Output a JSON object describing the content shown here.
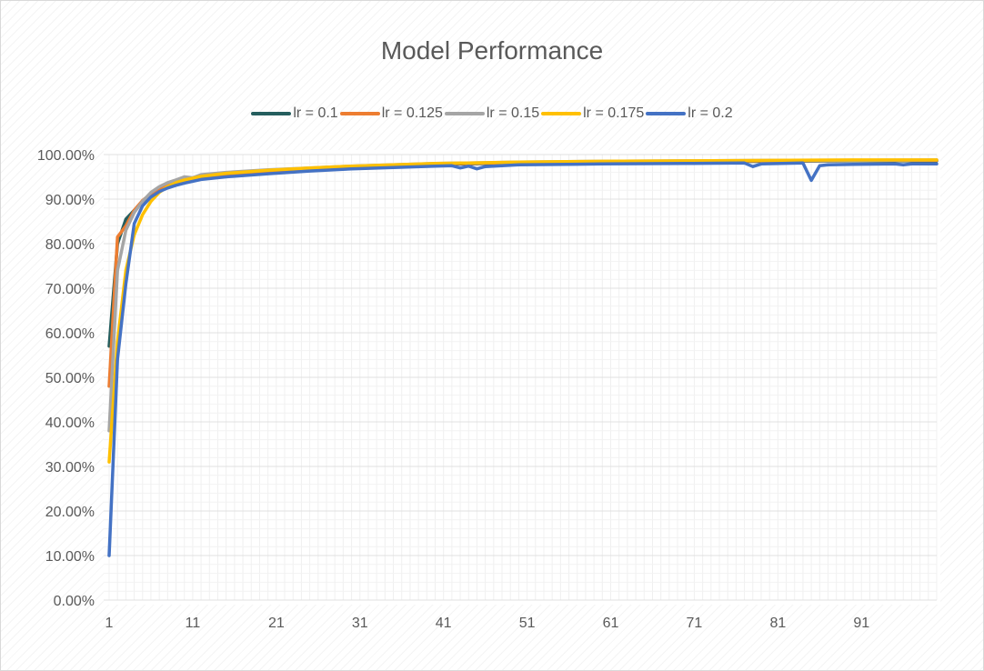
{
  "chart_data": {
    "type": "line",
    "title": "Model Performance",
    "xlabel": "",
    "ylabel": "",
    "ylim": [
      0,
      1
    ],
    "xlim": [
      1,
      100
    ],
    "x_tick_labels": [
      "1",
      "11",
      "21",
      "31",
      "41",
      "51",
      "61",
      "71",
      "81",
      "91"
    ],
    "x_tick_values": [
      1,
      11,
      21,
      31,
      41,
      51,
      61,
      71,
      81,
      91
    ],
    "y_tick_labels": [
      "0.00%",
      "10.00%",
      "20.00%",
      "30.00%",
      "40.00%",
      "50.00%",
      "60.00%",
      "70.00%",
      "80.00%",
      "90.00%",
      "100.00%"
    ],
    "y_tick_values": [
      0,
      0.1,
      0.2,
      0.3,
      0.4,
      0.5,
      0.6,
      0.7,
      0.8,
      0.9,
      1.0
    ],
    "grid": true,
    "legend_position": "top",
    "series": [
      {
        "name": "lr = 0.1",
        "color": "#255E5E",
        "points": [
          [
            1,
            0.57
          ],
          [
            2,
            0.8
          ],
          [
            3,
            0.855
          ],
          [
            4,
            0.875
          ],
          [
            5,
            0.895
          ],
          [
            6,
            0.91
          ],
          [
            7,
            0.92
          ],
          [
            8,
            0.93
          ],
          [
            9,
            0.935
          ],
          [
            10,
            0.94
          ],
          [
            12,
            0.946
          ],
          [
            15,
            0.953
          ],
          [
            20,
            0.96
          ],
          [
            25,
            0.966
          ],
          [
            30,
            0.971
          ],
          [
            35,
            0.975
          ],
          [
            40,
            0.978
          ],
          [
            50,
            0.981
          ],
          [
            60,
            0.983
          ],
          [
            70,
            0.984
          ],
          [
            80,
            0.985
          ],
          [
            90,
            0.986
          ],
          [
            100,
            0.986
          ]
        ]
      },
      {
        "name": "lr = 0.125",
        "color": "#ED7D31",
        "points": [
          [
            1,
            0.48
          ],
          [
            2,
            0.815
          ],
          [
            3,
            0.84
          ],
          [
            4,
            0.875
          ],
          [
            5,
            0.897
          ],
          [
            6,
            0.912
          ],
          [
            7,
            0.923
          ],
          [
            8,
            0.932
          ],
          [
            9,
            0.938
          ],
          [
            10,
            0.943
          ],
          [
            12,
            0.949
          ],
          [
            15,
            0.956
          ],
          [
            20,
            0.963
          ],
          [
            25,
            0.968
          ],
          [
            30,
            0.972
          ],
          [
            35,
            0.976
          ],
          [
            40,
            0.979
          ],
          [
            50,
            0.982
          ],
          [
            60,
            0.984
          ],
          [
            70,
            0.985
          ],
          [
            80,
            0.986
          ],
          [
            90,
            0.987
          ],
          [
            100,
            0.987
          ]
        ]
      },
      {
        "name": "lr = 0.15",
        "color": "#A5A5A5",
        "points": [
          [
            1,
            0.38
          ],
          [
            2,
            0.74
          ],
          [
            3,
            0.83
          ],
          [
            4,
            0.87
          ],
          [
            5,
            0.895
          ],
          [
            6,
            0.915
          ],
          [
            7,
            0.928
          ],
          [
            8,
            0.937
          ],
          [
            9,
            0.943
          ],
          [
            10,
            0.95
          ],
          [
            11,
            0.948
          ],
          [
            12,
            0.955
          ],
          [
            15,
            0.96
          ],
          [
            20,
            0.966
          ],
          [
            25,
            0.97
          ],
          [
            30,
            0.974
          ],
          [
            35,
            0.977
          ],
          [
            40,
            0.98
          ],
          [
            50,
            0.983
          ],
          [
            60,
            0.985
          ],
          [
            70,
            0.986
          ],
          [
            80,
            0.987
          ],
          [
            90,
            0.987
          ],
          [
            100,
            0.988
          ]
        ]
      },
      {
        "name": "lr = 0.175",
        "color": "#FFC000",
        "points": [
          [
            1,
            0.31
          ],
          [
            2,
            0.58
          ],
          [
            3,
            0.74
          ],
          [
            4,
            0.82
          ],
          [
            5,
            0.865
          ],
          [
            6,
            0.895
          ],
          [
            7,
            0.915
          ],
          [
            8,
            0.928
          ],
          [
            9,
            0.937
          ],
          [
            10,
            0.943
          ],
          [
            12,
            0.951
          ],
          [
            15,
            0.958
          ],
          [
            20,
            0.965
          ],
          [
            25,
            0.97
          ],
          [
            30,
            0.974
          ],
          [
            35,
            0.977
          ],
          [
            40,
            0.98
          ],
          [
            50,
            0.983
          ],
          [
            60,
            0.985
          ],
          [
            70,
            0.986
          ],
          [
            80,
            0.987
          ],
          [
            90,
            0.988
          ],
          [
            100,
            0.988
          ]
        ]
      },
      {
        "name": "lr = 0.2",
        "color": "#4472C4",
        "points": [
          [
            1,
            0.1
          ],
          [
            2,
            0.54
          ],
          [
            3,
            0.71
          ],
          [
            4,
            0.845
          ],
          [
            5,
            0.885
          ],
          [
            6,
            0.905
          ],
          [
            7,
            0.917
          ],
          [
            8,
            0.925
          ],
          [
            9,
            0.931
          ],
          [
            10,
            0.936
          ],
          [
            11,
            0.94
          ],
          [
            12,
            0.944
          ],
          [
            15,
            0.95
          ],
          [
            20,
            0.957
          ],
          [
            25,
            0.963
          ],
          [
            30,
            0.968
          ],
          [
            35,
            0.971
          ],
          [
            40,
            0.974
          ],
          [
            42,
            0.975
          ],
          [
            43,
            0.97
          ],
          [
            44,
            0.974
          ],
          [
            45,
            0.968
          ],
          [
            46,
            0.973
          ],
          [
            50,
            0.977
          ],
          [
            60,
            0.979
          ],
          [
            70,
            0.98
          ],
          [
            77,
            0.981
          ],
          [
            78,
            0.973
          ],
          [
            79,
            0.979
          ],
          [
            84,
            0.981
          ],
          [
            85,
            0.942
          ],
          [
            86,
            0.975
          ],
          [
            87,
            0.977
          ],
          [
            90,
            0.978
          ],
          [
            95,
            0.979
          ],
          [
            96,
            0.977
          ],
          [
            97,
            0.979
          ],
          [
            100,
            0.979
          ]
        ]
      }
    ]
  }
}
